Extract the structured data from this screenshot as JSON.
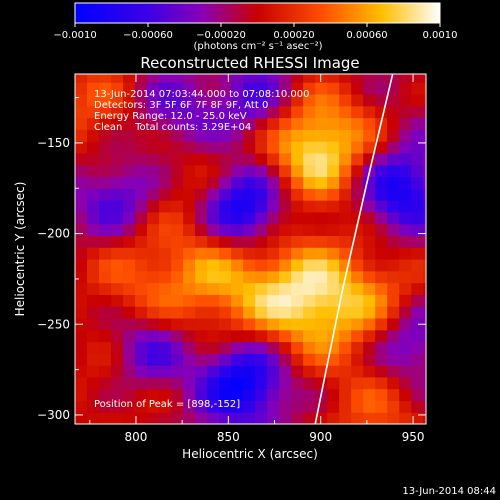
{
  "chart_data": {
    "type": "heatmap",
    "title": "Reconstructed RHESSI Image",
    "xlabel": "Heliocentric X (arcsec)",
    "ylabel": "Heliocentric Y (arcsec)",
    "xlim": [
      767,
      957
    ],
    "ylim": [
      -305,
      -112
    ],
    "x_ticks": [
      800,
      850,
      900,
      950
    ],
    "y_ticks": [
      -150,
      -200,
      -250,
      -300
    ],
    "colorbar": {
      "range": [
        -0.001,
        0.001
      ],
      "ticks": [
        -0.001,
        -0.0006,
        -0.0002,
        0.0002,
        0.0006,
        0.001
      ],
      "tick_labels": [
        "−0.0010",
        "−0.00060",
        "−0.00020",
        "0.00020",
        "0.00060",
        "0.0010"
      ],
      "unit_label": "(photons cm⁻² s⁻¹ asec⁻²)",
      "colors": [
        "#0000ff",
        "#6a00c8",
        "#c80000",
        "#ff8c00",
        "#ffffff"
      ]
    },
    "info_lines": [
      "13-Jun-2014 07:03:44.000 to 07:08:10.000",
      "Detectors: 3F 5F 6F 7F 8F 9F, Att 0",
      "Energy Range: 12.0 - 25.0 keV",
      "Clean    Total counts: 3.29E+04"
    ],
    "peak_label": "Position of Peak = [898,-152]",
    "peak": {
      "x": 898,
      "y": -152
    },
    "sources": [
      {
        "x": 898,
        "y": -152,
        "value": 0.001
      },
      {
        "x": 891,
        "y": -235,
        "value": 0.0009
      },
      {
        "x": 845,
        "y": -225,
        "value": 0.0006
      },
      {
        "x": 930,
        "y": -240,
        "value": 0.0005
      },
      {
        "x": 800,
        "y": -225,
        "value": 0.0004
      },
      {
        "x": 830,
        "y": -170,
        "value": 0.0003
      },
      {
        "x": 775,
        "y": -130,
        "value": 0.0004
      },
      {
        "x": 930,
        "y": -300,
        "value": 0.0004
      },
      {
        "x": 790,
        "y": -280,
        "value": 0.0003
      }
    ],
    "minima": [
      {
        "x": 858,
        "y": -185,
        "value": -0.001
      },
      {
        "x": 858,
        "y": -282,
        "value": -0.0009
      },
      {
        "x": 942,
        "y": -175,
        "value": -0.0008
      },
      {
        "x": 805,
        "y": -265,
        "value": -0.0006
      },
      {
        "x": 947,
        "y": -260,
        "value": -0.0006
      },
      {
        "x": 790,
        "y": -180,
        "value": -0.0005
      },
      {
        "x": 865,
        "y": -128,
        "value": -0.0005
      },
      {
        "x": 820,
        "y": -135,
        "value": -0.0004
      }
    ],
    "limb_curve": [
      {
        "x": 939,
        "y": -112
      },
      {
        "x": 925,
        "y": -172
      },
      {
        "x": 912,
        "y": -230
      },
      {
        "x": 904,
        "y": -270
      },
      {
        "x": 897,
        "y": -305
      }
    ],
    "timestamp": "13-Jun-2014 08:44"
  }
}
